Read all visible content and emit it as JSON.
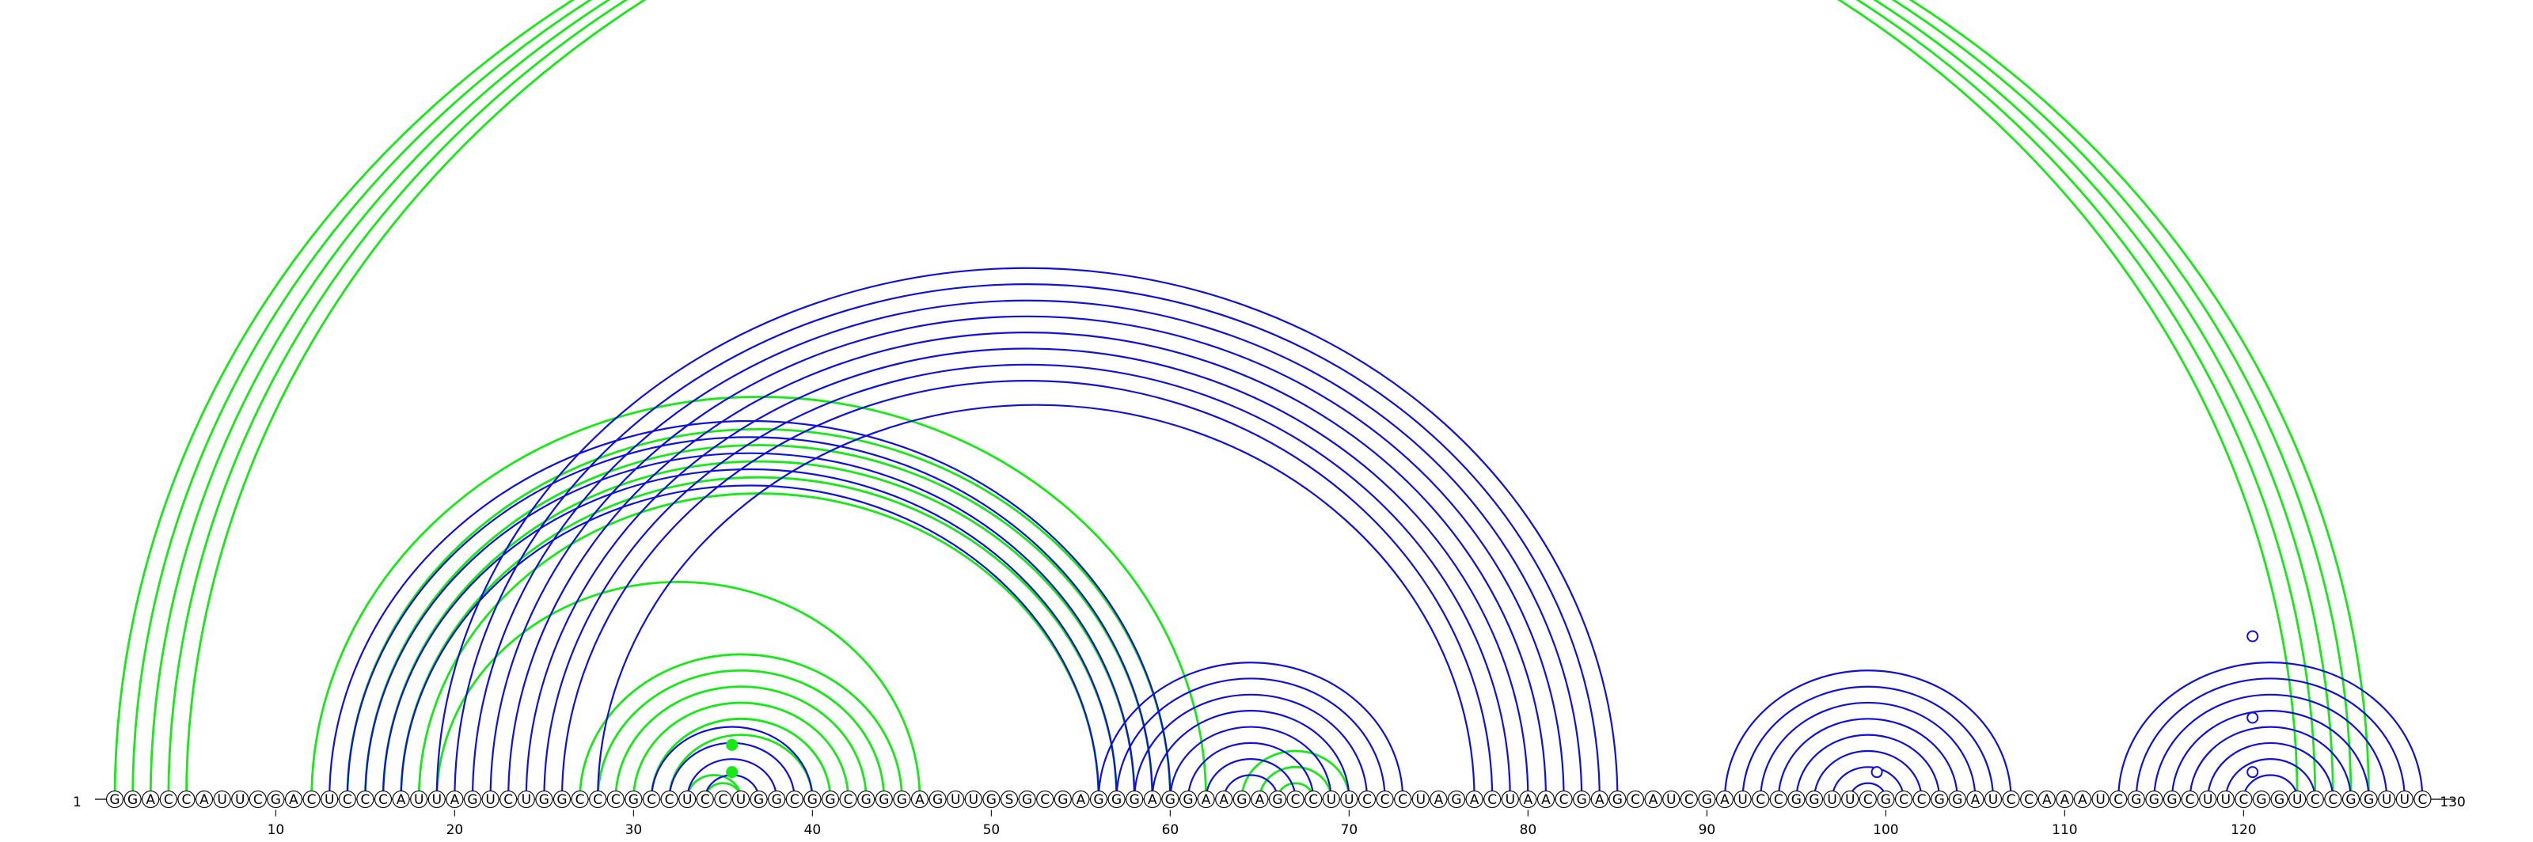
{
  "sequence": "GGACCAUUCGACUCCCAUUAGUCUGGCCCGCCUCCUGGCGGCGGGAGUUGSGCGAGGGAGGAAGAGCCUUCCCUAGACUAACGAGCAUCGAUCCGGUUCGCCGGAUCCAAAUCGGGCUUCGGUCCGGUUC",
  "start_label": "1",
  "end_label": "130",
  "ticks": [
    10,
    20,
    30,
    40,
    50,
    60,
    70,
    80,
    90,
    100,
    110,
    120
  ],
  "colors": {
    "green": "#18e818",
    "blue": "#1010d8",
    "axis": "#222222"
  },
  "arcs": {
    "green": [
      [
        1,
        123
      ],
      [
        2,
        124
      ],
      [
        3,
        125
      ],
      [
        4,
        126
      ],
      [
        5,
        127
      ],
      [
        12,
        62
      ],
      [
        14,
        60
      ],
      [
        15,
        59
      ],
      [
        16,
        58
      ],
      [
        17,
        57
      ],
      [
        18,
        56
      ],
      [
        19,
        46
      ],
      [
        27,
        45
      ],
      [
        28,
        44
      ],
      [
        29,
        43
      ],
      [
        30,
        42
      ],
      [
        31,
        41
      ],
      [
        32,
        40
      ],
      [
        33,
        36
      ],
      [
        34,
        36
      ],
      [
        64,
        70
      ],
      [
        65,
        69
      ],
      [
        66,
        68
      ]
    ],
    "blue": [
      [
        13,
        60
      ],
      [
        14,
        59
      ],
      [
        15,
        58
      ],
      [
        16,
        57
      ],
      [
        17,
        56
      ],
      [
        19,
        85
      ],
      [
        20,
        84
      ],
      [
        21,
        83
      ],
      [
        22,
        82
      ],
      [
        23,
        81
      ],
      [
        24,
        80
      ],
      [
        25,
        79
      ],
      [
        26,
        78
      ],
      [
        28,
        77
      ],
      [
        31,
        40
      ],
      [
        32,
        39
      ],
      [
        33,
        38
      ],
      [
        34,
        37
      ],
      [
        56,
        73
      ],
      [
        57,
        72
      ],
      [
        58,
        71
      ],
      [
        59,
        70
      ],
      [
        60,
        69
      ],
      [
        61,
        68
      ],
      [
        62,
        67
      ],
      [
        63,
        66
      ],
      [
        91,
        107
      ],
      [
        92,
        106
      ],
      [
        93,
        105
      ],
      [
        94,
        104
      ],
      [
        95,
        103
      ],
      [
        96,
        102
      ],
      [
        97,
        101
      ],
      [
        98,
        100
      ],
      [
        113,
        130
      ],
      [
        114,
        129
      ],
      [
        115,
        128
      ],
      [
        116,
        127
      ],
      [
        117,
        126
      ],
      [
        118,
        125
      ],
      [
        119,
        124
      ],
      [
        120,
        123
      ]
    ]
  },
  "markers": [
    {
      "pos": 35,
      "height_pos": 36,
      "color": "green",
      "filled": true
    },
    {
      "pos": 35,
      "height_pos": 37,
      "color": "green",
      "filled": true
    },
    {
      "pos": 99,
      "height_pos": 100,
      "color": "blue",
      "filled": false
    },
    {
      "pos": 120,
      "height_pos": 121,
      "color": "blue",
      "filled": false
    },
    {
      "pos": 120,
      "height_pos": 123,
      "color": "blue",
      "filled": false
    },
    {
      "pos": 120,
      "height_pos": 126,
      "color": "blue",
      "filled": false
    }
  ]
}
